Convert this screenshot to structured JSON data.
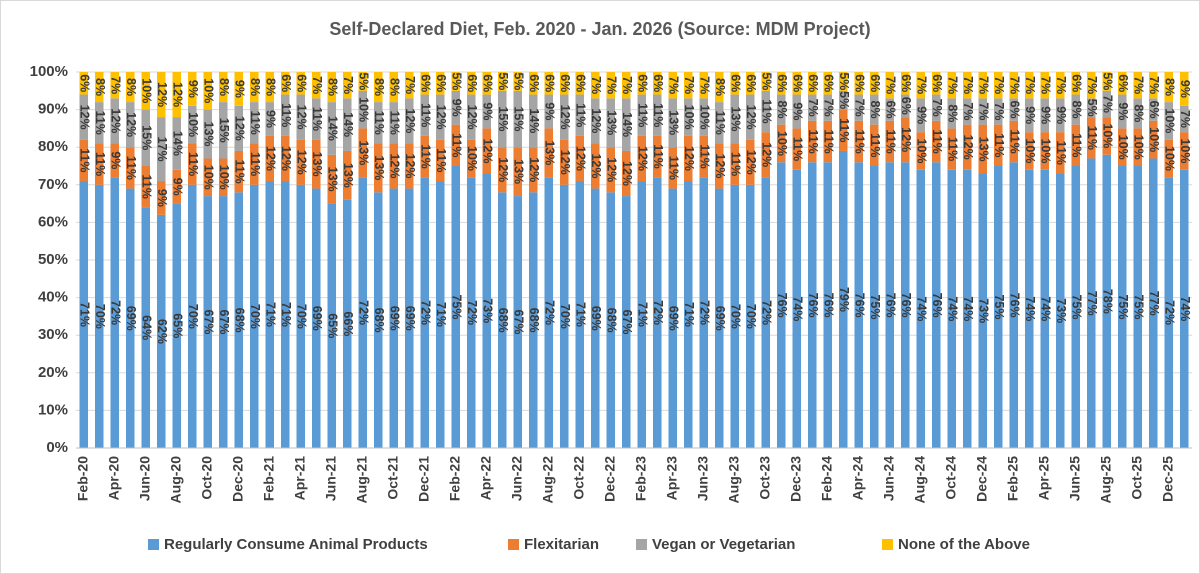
{
  "chart_data": {
    "type": "stacked_bar",
    "title": "Self-Declared Diet, Feb. 2020 - Jan. 2026 (Source: MDM Project)",
    "categories": [
      "Feb-20",
      null,
      "Apr-20",
      null,
      "Jun-20",
      null,
      "Aug-20",
      null,
      "Oct-20",
      null,
      "Dec-20",
      null,
      "Feb-21",
      null,
      "Apr-21",
      null,
      "Jun-21",
      null,
      "Aug-21",
      null,
      "Oct-21",
      null,
      "Dec-21",
      null,
      "Feb-22",
      null,
      "Apr-22",
      null,
      "Jun-22",
      null,
      "Aug-22",
      null,
      "Oct-22",
      null,
      "Dec-22",
      null,
      "Feb-23",
      null,
      "Apr-23",
      null,
      "Jun-23",
      null,
      "Aug-23",
      null,
      "Oct-23",
      null,
      "Dec-23",
      null,
      "Feb-24",
      null,
      "Apr-24",
      null,
      "Jun-24",
      null,
      "Aug-24",
      null,
      "Oct-24",
      null,
      "Dec-24",
      null,
      "Feb-25",
      null,
      "Apr-25",
      null,
      "Jun-25",
      null,
      "Aug-25",
      null,
      "Oct-25",
      null,
      "Dec-25",
      null
    ],
    "series": [
      {
        "name": "Regularly Consume Animal Products",
        "color": "#5b9bd5",
        "values": [
          71,
          70,
          72,
          69,
          64,
          62,
          65,
          70,
          67,
          67,
          68,
          70,
          71,
          71,
          70,
          69,
          65,
          66,
          72,
          68,
          69,
          69,
          72,
          71,
          75,
          72,
          73,
          68,
          67,
          68,
          72,
          70,
          71,
          69,
          68,
          67,
          71,
          72,
          69,
          71,
          72,
          69,
          70,
          70,
          72,
          76,
          74,
          76,
          76,
          79,
          76,
          75,
          76,
          76,
          74,
          76,
          74,
          74,
          73,
          75,
          76,
          74,
          74,
          73,
          75,
          77,
          78,
          75,
          75,
          77,
          72,
          74
        ],
        "value_labels": [
          "71%",
          "70%",
          "72%",
          "69%",
          "64%",
          "62%",
          "65%",
          "70%",
          "67%",
          "67%",
          "68%",
          "70%",
          "71%",
          "71%",
          "70%",
          "69%",
          "65%",
          "66%",
          "72%",
          "68%",
          "69%",
          "69%",
          "72%",
          "71%",
          "75%",
          "72%",
          "73%",
          "68%",
          "67%",
          "68%",
          "72%",
          "70%",
          "71%",
          "69%",
          "68%",
          "67%",
          "71%",
          "72%",
          "69%",
          "71%",
          "72%",
          "69%",
          "70%",
          "70%",
          "72%",
          "76%",
          "74%",
          "76%",
          "76%",
          "79%",
          "76%",
          "75%",
          "76%",
          "76%",
          "74%",
          "76%",
          "74%",
          "74%",
          "73%",
          "75%",
          "76%",
          "74%",
          "74%",
          "73%",
          "75%",
          "77%",
          "78%",
          "75%",
          "75%",
          "77%",
          "72%",
          "74%"
        ]
      },
      {
        "name": "Flexitarian",
        "color": "#ed7d31",
        "values": [
          11,
          11,
          9,
          11,
          11,
          9,
          9,
          11,
          10,
          10,
          11,
          11,
          12,
          12,
          12,
          13,
          13,
          13,
          13,
          13,
          12,
          12,
          11,
          11,
          11,
          10,
          12,
          12,
          13,
          12,
          13,
          12,
          12,
          12,
          12,
          12,
          12,
          11,
          11,
          12,
          11,
          12,
          11,
          12,
          12,
          10,
          11,
          11,
          11,
          11,
          11,
          11,
          11,
          12,
          10,
          11,
          11,
          12,
          13,
          11,
          11,
          10,
          10,
          11,
          11,
          11,
          10,
          10,
          10,
          10,
          10,
          10
        ],
        "value_labels": [
          "11%",
          "11%",
          "9%",
          "11%",
          "11%",
          "9%",
          "9%",
          "11%",
          "10%",
          "10%",
          "11%",
          "11%",
          "12%",
          "12%",
          "12%",
          "13%",
          "13%",
          "13%",
          "13%",
          "13%",
          "12%",
          "12%",
          "11%",
          "11%",
          "11%",
          "10%",
          "12%",
          "12%",
          "13%",
          "12%",
          "13%",
          "12%",
          "12%",
          "12%",
          "12%",
          "12%",
          "12%",
          "11%",
          "11%",
          "12%",
          "11%",
          "12%",
          "11%",
          "12%",
          "12%",
          "10%",
          "11%",
          "11%",
          "11%",
          "11%",
          "11%",
          "11%",
          "11%",
          "12%",
          "10%",
          "11%",
          "11%",
          "12%",
          "13%",
          "11%",
          "11%",
          "10%",
          "10%",
          "11%",
          "11%",
          "11%",
          "10%",
          "10%",
          "10%",
          "10%",
          "10%",
          "10%"
        ]
      },
      {
        "name": "Vegan or Vegetarian",
        "color": "#a5a5a5",
        "values": [
          12,
          11,
          12,
          12,
          15,
          17,
          14,
          10,
          13,
          15,
          12,
          11,
          9,
          11,
          12,
          11,
          14,
          14,
          10,
          11,
          11,
          12,
          11,
          12,
          9,
          12,
          9,
          15,
          15,
          14,
          9,
          12,
          11,
          12,
          13,
          14,
          11,
          11,
          13,
          10,
          10,
          11,
          13,
          12,
          11,
          8,
          9,
          7,
          7,
          5,
          7,
          8,
          6,
          6,
          9,
          7,
          8,
          7,
          7,
          7,
          6,
          9,
          9,
          9,
          8,
          5,
          7,
          9,
          8,
          6,
          10,
          7
        ],
        "value_labels": [
          "12%",
          "11%",
          "12%",
          "12%",
          "15%",
          "17%",
          "14%",
          "10%",
          "13%",
          "15%",
          "12%",
          "11%",
          "9%",
          "11%",
          "12%",
          "11%",
          "14%",
          "14%",
          "10%",
          "11%",
          "11%",
          "12%",
          "11%",
          "12%",
          "9%",
          "12%",
          "9%",
          "15%",
          "15%",
          "14%",
          "9%",
          "12%",
          "11%",
          "12%",
          "13%",
          "14%",
          "11%",
          "11%",
          "13%",
          "10%",
          "10%",
          "11%",
          "13%",
          "12%",
          "11%",
          "8%",
          "9%",
          "7%",
          "7%",
          "5%",
          "7%",
          "8%",
          "6%",
          "6%",
          "9%",
          "7%",
          "8%",
          "7%",
          "7%",
          "7%",
          "6%",
          "9%",
          "9%",
          "9%",
          "8%",
          "5%",
          "7%",
          "9%",
          "8%",
          "6%",
          "10%",
          "7%"
        ]
      },
      {
        "name": "None of the Above",
        "color": "#ffc000",
        "values": [
          6,
          8,
          7,
          8,
          10,
          12,
          12,
          9,
          10,
          8,
          9,
          8,
          8,
          6,
          6,
          7,
          8,
          7,
          5,
          8,
          8,
          7,
          6,
          6,
          5,
          6,
          6,
          5,
          5,
          6,
          6,
          6,
          6,
          7,
          7,
          7,
          6,
          6,
          7,
          7,
          7,
          8,
          6,
          6,
          5,
          6,
          6,
          6,
          6,
          5,
          6,
          6,
          7,
          6,
          7,
          6,
          7,
          7,
          7,
          7,
          7,
          7,
          7,
          7,
          6,
          7,
          5,
          6,
          7,
          7,
          8,
          9
        ],
        "value_labels": [
          "6%",
          "8%",
          "7%",
          "8%",
          "10%",
          "12%",
          "12%",
          "9%",
          "10%",
          "8%",
          "9%",
          "8%",
          "8%",
          "6%",
          "6%",
          "7%",
          "8%",
          "7%",
          "5%",
          "8%",
          "8%",
          "7%",
          "6%",
          "6%",
          "5%",
          "6%",
          "6%",
          "5%",
          "5%",
          "6%",
          "6%",
          "6%",
          "6%",
          "7%",
          "7%",
          "7%",
          "6%",
          "6%",
          "7%",
          "7%",
          "7%",
          "8%",
          "6%",
          "6%",
          "5%",
          "6%",
          "6%",
          "6%",
          "6%",
          "5%",
          "6%",
          "6%",
          "7%",
          "6%",
          "7%",
          "6%",
          "7%",
          "7%",
          "7%",
          "7%",
          "7%",
          "7%",
          "7%",
          "7%",
          "6%",
          "7%",
          "5%",
          "6%",
          "7%",
          "7%",
          "8%",
          "9%"
        ]
      }
    ],
    "ylim": [
      0,
      100
    ],
    "yticks": [
      {
        "value": 0,
        "label": "0%"
      },
      {
        "value": 10,
        "label": "10%"
      },
      {
        "value": 20,
        "label": "20%"
      },
      {
        "value": 30,
        "label": "30%"
      },
      {
        "value": 40,
        "label": "40%"
      },
      {
        "value": 50,
        "label": "50%"
      },
      {
        "value": 60,
        "label": "60%"
      },
      {
        "value": 70,
        "label": "70%"
      },
      {
        "value": 80,
        "label": "80%"
      },
      {
        "value": 90,
        "label": "90%"
      },
      {
        "value": 100,
        "label": "100%"
      }
    ],
    "grid": true,
    "legend": "bottom"
  }
}
